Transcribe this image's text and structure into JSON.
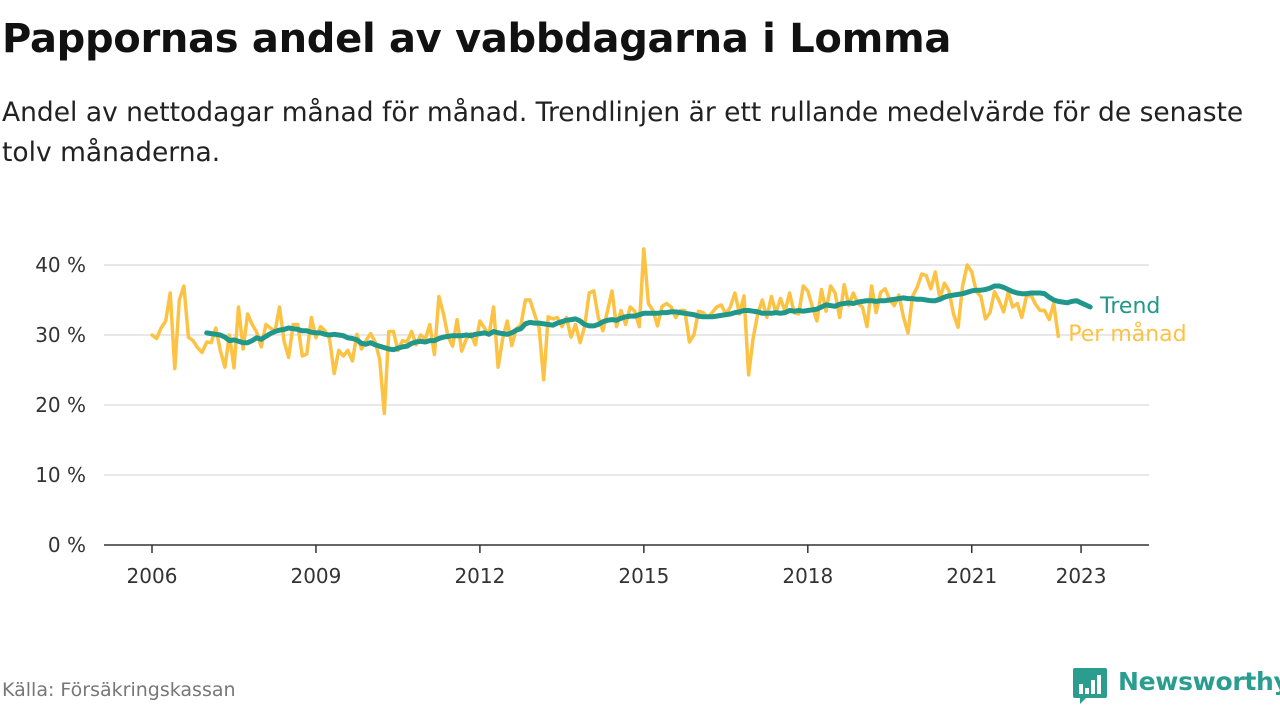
{
  "title": "Pappornas andel av vabbdagarna i Lomma",
  "subtitle": "Andel av nettodagar månad för månad. Trendlinjen är ett rullande medelvärde för de senaste tolv månaderna.",
  "source": "Källa: Försäkringskassan",
  "brand": {
    "name": "Newsworthy",
    "icon": "bar-chart-logo-icon",
    "color": "#2a9d8f"
  },
  "chart_data": {
    "type": "line",
    "x_start": "2006-01",
    "x_tick_labels": [
      "2006",
      "2009",
      "2012",
      "2015",
      "2018",
      "2021",
      "2023"
    ],
    "y_tick_labels": [
      "0 %",
      "10 %",
      "20 %",
      "30 %",
      "40 %"
    ],
    "y_ticks": [
      0,
      10,
      20,
      30,
      40
    ],
    "ylim": [
      0,
      40
    ],
    "grid": "horizontal",
    "series": [
      {
        "name": "Per månad",
        "color": "#fcc244",
        "values": [
          30,
          29.5,
          31,
          32,
          36,
          25.2,
          35,
          37,
          29.7,
          29.2,
          28.2,
          27.5,
          29,
          28.9,
          31,
          27.8,
          25.4,
          30,
          25.3,
          34,
          28,
          33,
          31.5,
          30.4,
          28.3,
          31.5,
          31,
          30.5,
          34,
          29.1,
          26.8,
          31.5,
          31.5,
          27,
          27.3,
          32.5,
          29.6,
          31.2,
          30.6,
          29.4,
          24.5,
          27.8,
          27,
          27.8,
          26.3,
          30.1,
          28,
          29.2,
          30.2,
          29,
          26.5,
          18.8,
          30.5,
          30.5,
          27.8,
          29.2,
          29,
          30.5,
          28.6,
          30,
          29.4,
          31.5,
          27.2,
          35.5,
          33,
          29.8,
          28.4,
          32.2,
          27.7,
          29.4,
          30.2,
          28.6,
          32,
          31,
          30,
          34,
          25.4,
          29.5,
          32,
          28.5,
          30.9,
          31.4,
          35,
          35,
          33,
          31,
          23.6,
          32.6,
          32.3,
          32.5,
          31.2,
          32.5,
          29.7,
          31.5,
          28.9,
          31.2,
          36,
          36.3,
          32.5,
          30.6,
          33.4,
          36.3,
          31.2,
          33.5,
          31.5,
          34,
          33.4,
          31.2,
          42.3,
          34.5,
          33.5,
          31.3,
          34.1,
          34.5,
          34,
          32.5,
          33.5,
          33.5,
          29,
          30,
          33.4,
          33.2,
          32.5,
          33.2,
          34,
          34.3,
          33,
          34,
          36,
          33,
          35.6,
          24.3,
          29.5,
          33,
          35,
          32.5,
          35.5,
          33.2,
          35.2,
          33.4,
          36,
          33.2,
          33,
          37,
          36.3,
          34,
          32,
          36.5,
          33.4,
          37,
          36,
          32.5,
          37.2,
          34.2,
          36,
          34.5,
          34,
          31.2,
          37,
          33.2,
          36.1,
          36.6,
          35,
          34.2,
          35.7,
          32.6,
          30.3,
          35.5,
          36.8,
          38.7,
          38.5,
          36.6,
          39,
          35.2,
          37.4,
          36.3,
          33,
          31.1,
          37,
          40,
          39,
          36.2,
          35.5,
          32.3,
          33.2,
          36.2,
          34.9,
          33.3,
          36.1,
          34,
          34.5,
          32.5,
          35.5,
          35.7,
          34.4,
          33.5,
          33.5,
          32.2,
          34.5,
          29.8
        ]
      },
      {
        "name": "Trend",
        "color": "#20978a",
        "values": [
          30.3,
          30.2,
          30.1,
          30,
          29.7,
          29.2,
          29.3,
          29.1,
          28.9,
          28.9,
          29.2,
          29.6,
          29.4,
          29.8,
          30.2,
          30.5,
          30.7,
          30.8,
          31,
          30.9,
          30.8,
          30.6,
          30.6,
          30.4,
          30.3,
          30.3,
          30.1,
          30,
          30.1,
          30,
          29.9,
          29.6,
          29.5,
          29.3,
          28.8,
          28.7,
          28.9,
          28.6,
          28.4,
          28.2,
          28,
          27.9,
          28.1,
          28.3,
          28.4,
          28.8,
          29,
          29.1,
          29,
          29.2,
          29.2,
          29.5,
          29.7,
          29.8,
          29.9,
          29.9,
          29.9,
          30,
          29.9,
          30.1,
          30.2,
          30.3,
          30.1,
          30.5,
          30.3,
          30.2,
          30.1,
          30.3,
          30.7,
          30.9,
          31.6,
          31.8,
          31.7,
          31.7,
          31.6,
          31.5,
          31.4,
          31.7,
          31.9,
          32.1,
          32.2,
          32.3,
          32,
          31.5,
          31.3,
          31.3,
          31.5,
          31.9,
          32.1,
          32.2,
          32.1,
          32.4,
          32.6,
          32.7,
          32.7,
          32.9,
          33.1,
          33.1,
          33.1,
          33.1,
          33.2,
          33.2,
          33.3,
          33.3,
          33.2,
          33.1,
          33,
          32.9,
          32.7,
          32.6,
          32.6,
          32.6,
          32.7,
          32.8,
          32.9,
          33,
          33.2,
          33.3,
          33.5,
          33.5,
          33.4,
          33.3,
          33.1,
          33.1,
          33.1,
          33.2,
          33.1,
          33.2,
          33.5,
          33.4,
          33.5,
          33.4,
          33.5,
          33.6,
          33.7,
          34,
          34.3,
          34.2,
          34.1,
          34.4,
          34.5,
          34.6,
          34.5,
          34.7,
          34.8,
          34.9,
          34.9,
          34.8,
          34.9,
          34.9,
          35,
          35.1,
          35.2,
          35.3,
          35.2,
          35.2,
          35.1,
          35.1,
          35,
          34.9,
          34.9,
          35.1,
          35.4,
          35.6,
          35.7,
          35.8,
          35.9,
          36.1,
          36.3,
          36.4,
          36.4,
          36.5,
          36.7,
          37,
          37,
          36.8,
          36.5,
          36.2,
          36,
          35.9,
          35.9,
          36,
          36,
          36,
          35.9,
          35.4,
          35,
          34.8,
          34.7,
          34.6,
          34.8,
          34.9,
          34.6,
          34.3,
          34
        ]
      }
    ],
    "trend_start": "2007-01"
  }
}
